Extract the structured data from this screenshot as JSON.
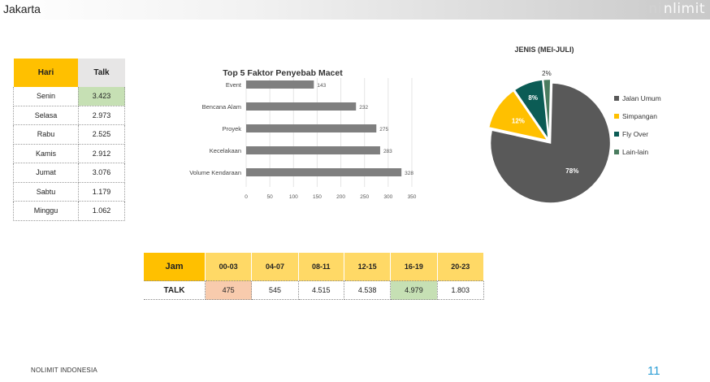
{
  "header": {
    "title": "Jakarta",
    "brand_ghost": "ni",
    "brand": "nlimit"
  },
  "hari_table": {
    "headers": [
      "Hari",
      "Talk"
    ],
    "rows": [
      {
        "day": "Senin",
        "talk": "3.423"
      },
      {
        "day": "Selasa",
        "talk": "2.973"
      },
      {
        "day": "Rabu",
        "talk": "2.525"
      },
      {
        "day": "Kamis",
        "talk": "2.912"
      },
      {
        "day": "Jumat",
        "talk": "3.076"
      },
      {
        "day": "Sabtu",
        "talk": "1.179"
      },
      {
        "day": "Minggu",
        "talk": "1.062"
      }
    ],
    "highlight_color": "#c6e0b4"
  },
  "jam_table": {
    "headers": [
      "Jam",
      "00-03",
      "04-07",
      "08-11",
      "12-15",
      "16-19",
      "20-23"
    ],
    "row_label": "TALK",
    "values": [
      "475",
      "545",
      "4.515",
      "4.538",
      "4.979",
      "1.803"
    ]
  },
  "chart_data": [
    {
      "type": "bar",
      "orientation": "horizontal",
      "title": "Top 5 Faktor Penyebab Macet",
      "categories": [
        "Event",
        "Bencana Alam",
        "Proyek",
        "Kecelakaan",
        "Volume Kendaraan"
      ],
      "values": [
        143,
        232,
        275,
        283,
        328
      ],
      "value_labels": [
        "143",
        "232",
        "275",
        "283",
        "328"
      ],
      "xlim": [
        0,
        350
      ],
      "ticks": [
        0,
        50,
        100,
        150,
        200,
        250,
        300,
        350
      ],
      "tick_labels": [
        "0",
        "50",
        "100",
        "150",
        "200",
        "250",
        "300",
        "350"
      ],
      "bar_color": "#7f7f7f",
      "grid": true
    },
    {
      "type": "pie",
      "title": "JENIS (MEI-JULI)",
      "slices": [
        {
          "label": "Jalan Umum",
          "value": 78,
          "display": "78%",
          "color": "#595959"
        },
        {
          "label": "Simpangan",
          "value": 12,
          "display": "12%",
          "color": "#ffc000"
        },
        {
          "label": "Fly Over",
          "value": 8,
          "display": "8%",
          "color": "#0b5c55"
        },
        {
          "label": "Lain-lain",
          "value": 2,
          "display": "2%",
          "color": "#4a7c5f"
        }
      ],
      "legend_position": "right"
    }
  ],
  "footer": {
    "company": "NOLIMIT INDONESIA",
    "page_number": "11"
  }
}
